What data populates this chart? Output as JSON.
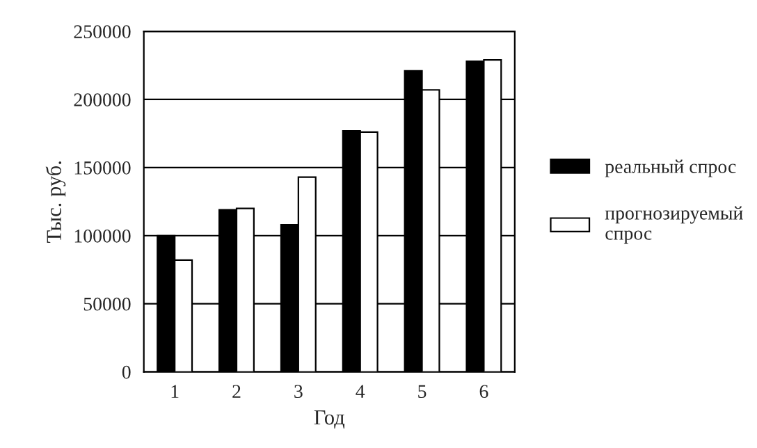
{
  "chart_data": {
    "type": "bar",
    "xlabel": "Год",
    "ylabel": "Тыс. руб.",
    "categories": [
      "1",
      "2",
      "3",
      "4",
      "5",
      "6"
    ],
    "series": [
      {
        "name": "реальный спрос",
        "color": "#000000",
        "values": [
          100000,
          119000,
          108000,
          177000,
          221000,
          228000
        ]
      },
      {
        "name": "прогнозируемый\nспрос",
        "color": "#ffffff",
        "values": [
          82000,
          120000,
          143000,
          176000,
          207000,
          229000
        ]
      }
    ],
    "ylim": [
      0,
      250000
    ],
    "yticks": [
      0,
      50000,
      100000,
      150000,
      200000,
      250000
    ],
    "grid": "y",
    "legend": "right"
  }
}
